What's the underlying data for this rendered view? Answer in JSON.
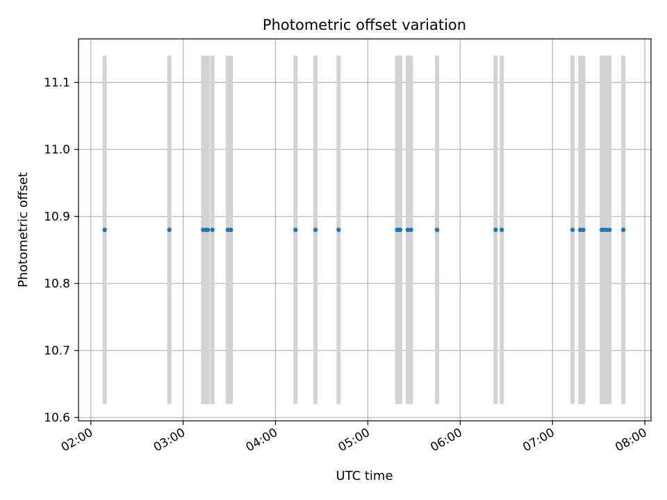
{
  "chart_data": {
    "type": "scatter",
    "title": "Photometric offset variation",
    "xlabel": "UTC time",
    "ylabel": "Photometric offset",
    "x_ticks": [
      "02:00",
      "03:00",
      "04:00",
      "05:00",
      "06:00",
      "07:00",
      "08:00"
    ],
    "y_ticks": [
      "10.6",
      "10.7",
      "10.8",
      "10.9",
      "11.0",
      "11.1"
    ],
    "xlim": [
      "01:52",
      "08:04"
    ],
    "ylim": [
      10.595,
      11.165
    ],
    "grid": true,
    "x_tick_rotation_deg": 30,
    "error_band": {
      "low": 10.62,
      "high": 11.14,
      "color": "#d3d3d3"
    },
    "marker_color": "#1f77b4",
    "points": [
      {
        "t": "02:09",
        "y": 10.88
      },
      {
        "t": "02:51",
        "y": 10.88
      },
      {
        "t": "03:13",
        "y": 10.88
      },
      {
        "t": "03:15",
        "y": 10.88
      },
      {
        "t": "03:16",
        "y": 10.88
      },
      {
        "t": "03:19",
        "y": 10.88
      },
      {
        "t": "03:29",
        "y": 10.88
      },
      {
        "t": "03:31",
        "y": 10.88
      },
      {
        "t": "04:13",
        "y": 10.88
      },
      {
        "t": "04:26",
        "y": 10.88
      },
      {
        "t": "04:41",
        "y": 10.88
      },
      {
        "t": "05:19",
        "y": 10.88
      },
      {
        "t": "05:20",
        "y": 10.88
      },
      {
        "t": "05:21",
        "y": 10.88
      },
      {
        "t": "05:26",
        "y": 10.88
      },
      {
        "t": "05:28",
        "y": 10.88
      },
      {
        "t": "05:45",
        "y": 10.88
      },
      {
        "t": "06:23",
        "y": 10.88
      },
      {
        "t": "06:27",
        "y": 10.88
      },
      {
        "t": "07:13",
        "y": 10.88
      },
      {
        "t": "07:18",
        "y": 10.88
      },
      {
        "t": "07:20",
        "y": 10.88
      },
      {
        "t": "07:32",
        "y": 10.88
      },
      {
        "t": "07:33",
        "y": 10.88
      },
      {
        "t": "07:35",
        "y": 10.88
      },
      {
        "t": "07:37",
        "y": 10.88
      },
      {
        "t": "07:46",
        "y": 10.88
      }
    ]
  }
}
